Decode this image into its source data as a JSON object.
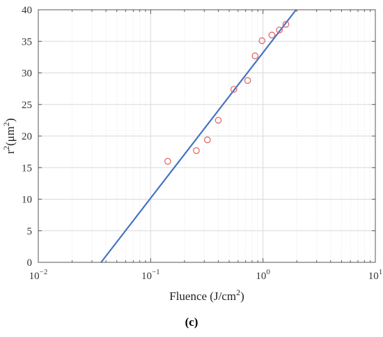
{
  "caption": "(c)",
  "chart_data": {
    "type": "scatter",
    "xscale": "log",
    "xlim": [
      0.01,
      10
    ],
    "ylim": [
      0,
      40
    ],
    "xlabel": "Fluence (J/cm",
    "xlabel_sup": "2",
    "xlabel_tail": ")",
    "ylabel_parts": [
      "r",
      "2",
      "(",
      "μm",
      "2",
      ")"
    ],
    "x_ticks": [
      {
        "value": 0.01,
        "base": "10",
        "exp": "−2"
      },
      {
        "value": 0.1,
        "base": "10",
        "exp": "−1"
      },
      {
        "value": 1,
        "base": "10",
        "exp": "0"
      },
      {
        "value": 10,
        "base": "10",
        "exp": "1"
      }
    ],
    "y_ticks": [
      0,
      5,
      10,
      15,
      20,
      25,
      30,
      35,
      40
    ],
    "grid": true,
    "series": [
      {
        "kind": "points",
        "marker": "open-circle",
        "color": "#e06060",
        "x": [
          0.142,
          0.255,
          0.32,
          0.4,
          0.55,
          0.73,
          0.85,
          0.98,
          1.2,
          1.4,
          1.6
        ],
        "y": [
          16.0,
          17.7,
          19.4,
          22.5,
          27.4,
          28.8,
          32.7,
          35.1,
          36.0,
          36.8,
          37.7
        ]
      },
      {
        "kind": "fit-line",
        "color": "#4472c4",
        "x": [
          0.0362,
          1.97
        ],
        "y": [
          0,
          40
        ]
      }
    ]
  }
}
